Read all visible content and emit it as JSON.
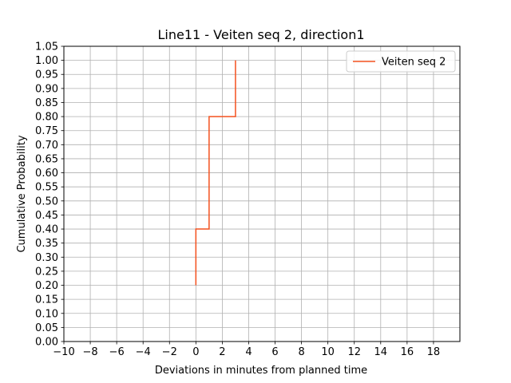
{
  "chart_data": {
    "type": "line",
    "title": "Line11 - Veiten seq 2, direction1",
    "xlabel": "Deviations in minutes from planned time",
    "ylabel": "Cumulative Probability",
    "xlim": [
      -10,
      20
    ],
    "ylim": [
      0,
      1.05
    ],
    "x_ticks": [
      -10,
      -8,
      -6,
      -4,
      -2,
      0,
      2,
      4,
      6,
      8,
      10,
      12,
      14,
      16,
      18
    ],
    "y_ticks": [
      0.0,
      0.05,
      0.1,
      0.15,
      0.2,
      0.25,
      0.3,
      0.35,
      0.4,
      0.45,
      0.5,
      0.55,
      0.6,
      0.65,
      0.7,
      0.75,
      0.8,
      0.85,
      0.9,
      0.95,
      1.0,
      1.05
    ],
    "grid": true,
    "legend_position": "top-right",
    "series": [
      {
        "name": "Veiten seq 2",
        "color": "#f4511e",
        "step": true,
        "points": [
          {
            "x": 0,
            "y": 0.2
          },
          {
            "x": 0,
            "y": 0.4
          },
          {
            "x": 1,
            "y": 0.4
          },
          {
            "x": 1,
            "y": 0.8
          },
          {
            "x": 3,
            "y": 0.8
          },
          {
            "x": 3,
            "y": 1.0
          }
        ]
      }
    ]
  }
}
